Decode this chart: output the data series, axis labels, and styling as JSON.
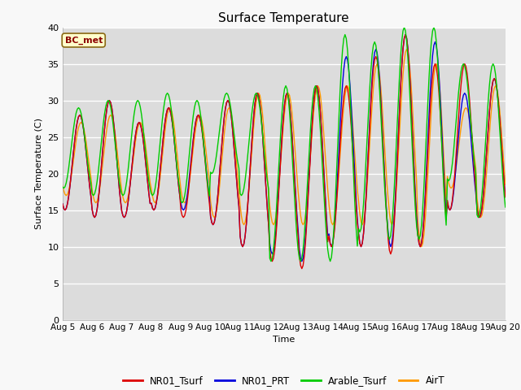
{
  "title": "Surface Temperature",
  "ylabel": "Surface Temperature (C)",
  "xlabel": "Time",
  "annotation": "BC_met",
  "ylim": [
    0,
    40
  ],
  "background_color": "#dcdcdc",
  "legend_entries": [
    "NR01_Tsurf",
    "NR01_PRT",
    "Arable_Tsurf",
    "AirT"
  ],
  "line_colors": [
    "#dd0000",
    "#0000dd",
    "#00cc00",
    "#ff9900"
  ],
  "xtick_labels": [
    "Aug 5",
    "Aug 6",
    "Aug 7",
    "Aug 8",
    "Aug 9",
    "Aug 10",
    "Aug 11",
    "Aug 12",
    "Aug 13",
    "Aug 14",
    "Aug 15",
    "Aug 16",
    "Aug 17",
    "Aug 18",
    "Aug 19",
    "Aug 20"
  ],
  "ytick_values": [
    0,
    5,
    10,
    15,
    20,
    25,
    30,
    35,
    40
  ],
  "n_days": 15,
  "hours_per_day": 24,
  "day_maxes_nr01": [
    28,
    30,
    27,
    29,
    28,
    30,
    31,
    31,
    32,
    32,
    36,
    39,
    35,
    35,
    33
  ],
  "day_mins_nr01": [
    15,
    14,
    14,
    15,
    14,
    13,
    10,
    8,
    7,
    10,
    10,
    9,
    10,
    15,
    14
  ],
  "day_maxes_prt": [
    28,
    30,
    27,
    29,
    28,
    30,
    31,
    31,
    32,
    36,
    37,
    39,
    38,
    31,
    33
  ],
  "day_mins_prt": [
    15,
    14,
    14,
    15,
    15,
    13,
    10,
    9,
    8,
    10,
    10,
    10,
    10,
    15,
    14
  ],
  "day_maxes_arab": [
    29,
    30,
    30,
    31,
    30,
    31,
    31,
    32,
    32,
    39,
    38,
    40,
    40,
    35,
    35
  ],
  "day_mins_arab": [
    18,
    17,
    17,
    17,
    16,
    20,
    17,
    8,
    8,
    8,
    12,
    11,
    11,
    19,
    14
  ],
  "day_maxes_air": [
    27,
    28,
    27,
    29,
    28,
    29,
    31,
    31,
    32,
    32,
    35,
    37,
    35,
    29,
    32
  ],
  "day_mins_air": [
    17,
    16,
    16,
    16,
    16,
    14,
    13,
    13,
    13,
    13,
    13,
    13,
    10,
    18,
    14
  ],
  "peak_hour_nr01": 14,
  "peak_hour_prt": 14,
  "peak_hour_arab": 13,
  "peak_hour_air": 15
}
